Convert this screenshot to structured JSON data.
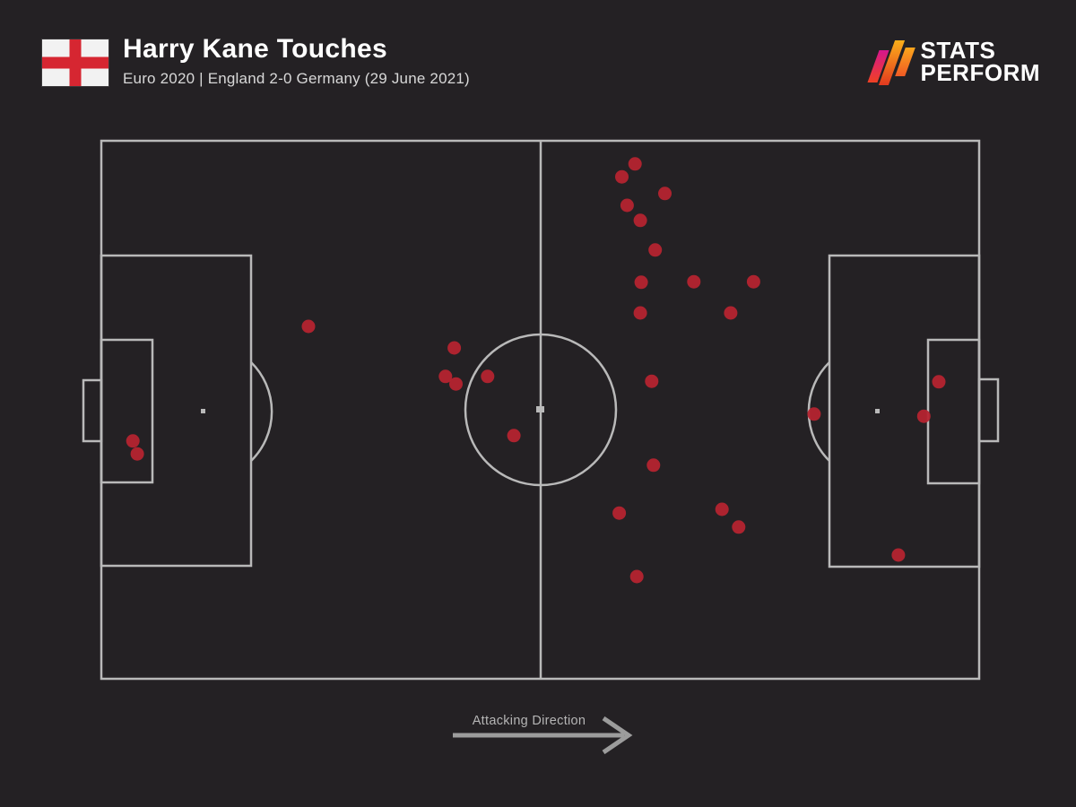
{
  "header": {
    "title": "Harry Kane Touches",
    "subtitle": "Euro 2020 | England 2-0 Germany (29 June 2021)",
    "flag_icon": "england-flag",
    "logo": {
      "line1": "STATS",
      "line2": "PERFORM",
      "mark_icon": "stats-perform-slashes"
    }
  },
  "footer": {
    "attacking_direction_label": "Attacking Direction",
    "arrow_icon": "right-arrow"
  },
  "colors": {
    "background": "#242124",
    "pitch_line": "#b9b9b9",
    "touch_dot": "#b52430",
    "flag_cross": "#d62631",
    "logo_gradient": [
      "#d6168d",
      "#ef4123",
      "#fbaf1a"
    ]
  },
  "chart_data": {
    "type": "scatter",
    "title": "Harry Kane Touches",
    "subtitle": "Euro 2020 | England 2-0 Germany (29 June 2021)",
    "player": "Harry Kane",
    "competition": "Euro 2020",
    "match": "England 2-0 Germany",
    "date": "29 June 2021",
    "attacking_direction": "left-to-right",
    "touch_count": 29,
    "coordinate_system": "percent of pitch, x 0=left goal line to 100=right goal line, y 0=top touchline to 100=bottom touchline",
    "points": [
      {
        "x": 23.6,
        "y": 34.5
      },
      {
        "x": 3.6,
        "y": 55.8
      },
      {
        "x": 4.1,
        "y": 58.2
      },
      {
        "x": 40.2,
        "y": 38.5
      },
      {
        "x": 39.2,
        "y": 43.8
      },
      {
        "x": 40.4,
        "y": 45.2
      },
      {
        "x": 44.0,
        "y": 43.8
      },
      {
        "x": 47.0,
        "y": 54.8
      },
      {
        "x": 60.8,
        "y": 4.3
      },
      {
        "x": 59.3,
        "y": 6.7
      },
      {
        "x": 64.2,
        "y": 9.8
      },
      {
        "x": 59.9,
        "y": 12.0
      },
      {
        "x": 61.4,
        "y": 14.8
      },
      {
        "x": 63.1,
        "y": 20.3
      },
      {
        "x": 61.5,
        "y": 26.3
      },
      {
        "x": 67.5,
        "y": 26.2
      },
      {
        "x": 74.3,
        "y": 26.2
      },
      {
        "x": 61.4,
        "y": 32.0
      },
      {
        "x": 71.7,
        "y": 32.0
      },
      {
        "x": 62.7,
        "y": 44.7
      },
      {
        "x": 62.9,
        "y": 60.3
      },
      {
        "x": 59.0,
        "y": 69.2
      },
      {
        "x": 70.7,
        "y": 68.5
      },
      {
        "x": 72.6,
        "y": 71.8
      },
      {
        "x": 61.0,
        "y": 81.0
      },
      {
        "x": 81.2,
        "y": 50.8
      },
      {
        "x": 93.7,
        "y": 51.2
      },
      {
        "x": 95.4,
        "y": 44.8
      },
      {
        "x": 90.8,
        "y": 77.0
      }
    ]
  }
}
